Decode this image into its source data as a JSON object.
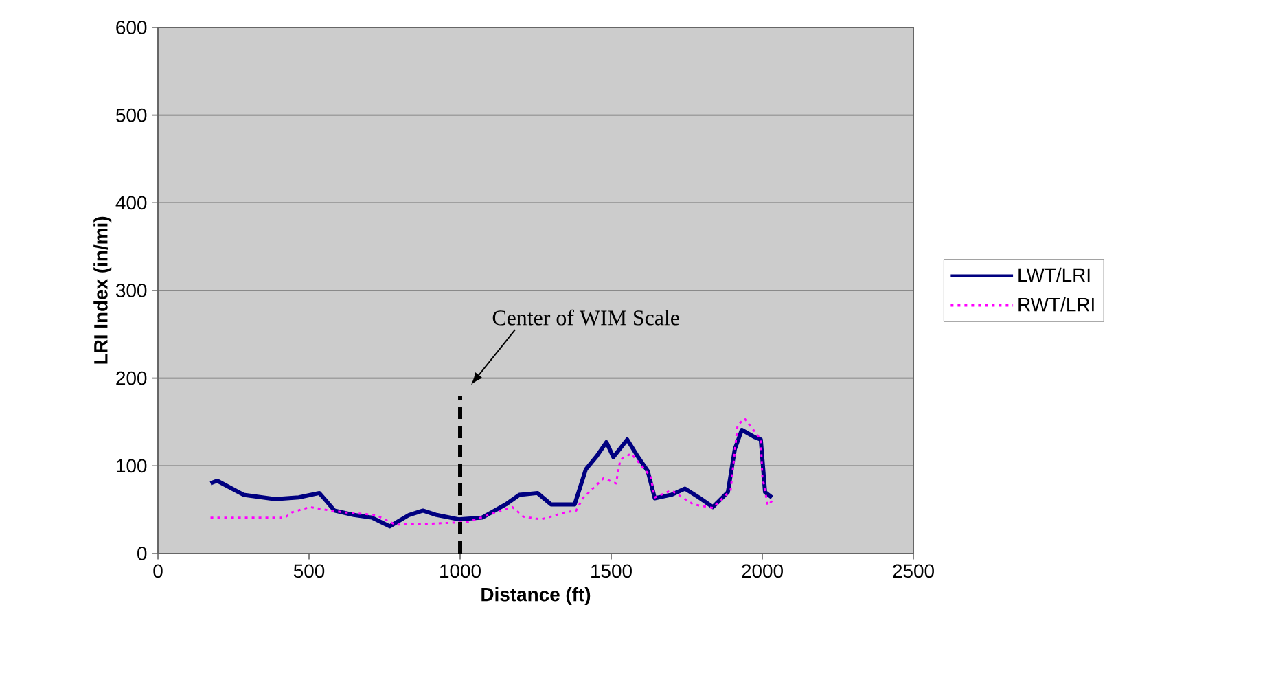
{
  "chart_data": {
    "type": "line",
    "xlabel": "Distance (ft)",
    "ylabel": "LRI Index (in/mi)",
    "xlim": [
      0,
      2500
    ],
    "xticks": [
      0,
      500,
      1000,
      1500,
      2000,
      2500
    ],
    "ylim": [
      0,
      600
    ],
    "yticks": [
      0,
      100,
      200,
      300,
      400,
      500,
      600
    ],
    "grid": "y",
    "legend": "right",
    "marker": "none",
    "annotations": [
      "Center of WIM Scale"
    ],
    "series": [
      {
        "name": "LWT/LRI",
        "color": "#000080",
        "line_style": "solid",
        "x": [
          174,
          196,
          283,
          388,
          466,
          534,
          557,
          584,
          648,
          708,
          767,
          831,
          877,
          922,
          995,
          1073,
          1151,
          1196,
          1256,
          1301,
          1379,
          1416,
          1452,
          1484,
          1507,
          1553,
          1589,
          1621,
          1644,
          1699,
          1744,
          1790,
          1836,
          1886,
          1909,
          1932,
          1973,
          1995,
          2009,
          2032
        ],
        "values": [
          80,
          83,
          67,
          62,
          64,
          69,
          60,
          49,
          44,
          41,
          31,
          44,
          49,
          44,
          39,
          41,
          56,
          67,
          69,
          56,
          56,
          96,
          111,
          127,
          110,
          130,
          110,
          94,
          63,
          67,
          74,
          64,
          53,
          70,
          119,
          141,
          133,
          130,
          70,
          64
        ]
      },
      {
        "name": "RWT/LRI",
        "color": "#ff00ff",
        "line_style": "dotted",
        "x": [
          174,
          420,
          443,
          502,
          571,
          616,
          721,
          785,
          904,
          1027,
          1119,
          1173,
          1210,
          1269,
          1347,
          1384,
          1406,
          1475,
          1516,
          1530,
          1566,
          1630,
          1644,
          1699,
          1772,
          1836,
          1895,
          1918,
          1941,
          1995,
          2000,
          2018,
          2041
        ],
        "values": [
          41,
          41,
          47,
          53,
          49,
          47,
          44,
          33,
          34,
          36,
          47,
          53,
          42,
          39,
          47,
          49,
          63,
          86,
          80,
          107,
          114,
          88,
          64,
          72,
          56,
          52,
          72,
          146,
          154,
          130,
          88,
          55,
          63
        ]
      },
      {
        "color": "#000000",
        "line_style": "dashed",
        "x": [
          1000,
          1000
        ],
        "values": [
          0,
          180
        ]
      }
    ]
  }
}
